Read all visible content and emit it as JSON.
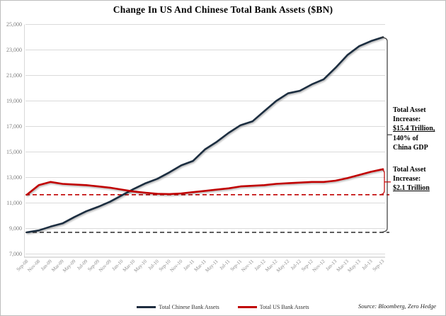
{
  "title": "Change In US And Chinese Total Bank Assets ($BN)",
  "source": "Source: Bloomberg, Zero Hedge",
  "legend": [
    {
      "label": "Total Chinese Bank Assets",
      "color": "#1f2d40"
    },
    {
      "label": "Total US Bank Assets",
      "color": "#c00000"
    }
  ],
  "annotations": {
    "china": {
      "line1": "Total Asset",
      "line2": "Increase:",
      "line3": "$15.4 Trillion,",
      "line4": "140% of",
      "line5": "China GDP"
    },
    "us": {
      "line1": "Total Asset",
      "line2": "Increase:",
      "line3": "$2.1 Trillion"
    }
  },
  "chart_data": {
    "type": "line",
    "title": "Change In US And Chinese Total Bank Assets ($BN)",
    "categories": [
      "Sep-08",
      "Nov-08",
      "Jan-09",
      "Mar-09",
      "May-09",
      "Jul-09",
      "Sep-09",
      "Nov-09",
      "Jan-10",
      "Mar-10",
      "May-10",
      "Jul-10",
      "Sep-10",
      "Nov-10",
      "Jan-11",
      "Mar-11",
      "May-11",
      "Jul-11",
      "Sep-11",
      "Nov-11",
      "Jan-12",
      "Mar-12",
      "May-12",
      "Jul-12",
      "Sep-12",
      "Nov-12",
      "Jan-13",
      "Mar-13",
      "May-13",
      "Jul-13",
      "Sep-13"
    ],
    "series": [
      {
        "name": "Total Chinese Bank Assets",
        "color": "#1f2d40",
        "values": [
          8700,
          8850,
          9150,
          9400,
          9900,
          10350,
          10700,
          11100,
          11600,
          12100,
          12550,
          12900,
          13400,
          13950,
          14300,
          15200,
          15800,
          16500,
          17100,
          17400,
          18200,
          19000,
          19600,
          19800,
          20300,
          20700,
          21600,
          22600,
          23300,
          23700,
          24000
        ]
      },
      {
        "name": "Total US Bank Assets",
        "color": "#c00000",
        "values": [
          11650,
          12400,
          12650,
          12500,
          12450,
          12400,
          12300,
          12200,
          12050,
          11900,
          11800,
          11720,
          11700,
          11750,
          11850,
          11950,
          12050,
          12150,
          12300,
          12350,
          12400,
          12500,
          12550,
          12600,
          12650,
          12650,
          12750,
          12950,
          13200,
          13450,
          13650
        ]
      }
    ],
    "ylim": [
      7000,
      25000
    ],
    "ytick_step": 2000,
    "ytick_labels": [
      "25,000",
      "23,000",
      "21,000",
      "19,000",
      "17,000",
      "15,000",
      "13,000",
      "11,000",
      "9,000",
      "7,000"
    ],
    "grid": true,
    "legend_position": "bottom",
    "baselines": [
      {
        "value": 8700,
        "color": "#3a3a3a",
        "style": "dashed"
      },
      {
        "value": 11650,
        "color": "#c00000",
        "style": "dashed"
      }
    ],
    "brackets": [
      {
        "from": 24000,
        "to": 8700,
        "x": 546,
        "hook": 537,
        "pointer": 553,
        "color": "#3a3a3a",
        "label": "Total Asset Increase: $15.4 Trillion, 140% of China GDP"
      },
      {
        "from": 13650,
        "to": 11650,
        "x": 542,
        "hook": 536,
        "pointer": 551,
        "color": "#c00000",
        "label": "Total Asset Increase: $2.1 Trillion"
      }
    ]
  }
}
